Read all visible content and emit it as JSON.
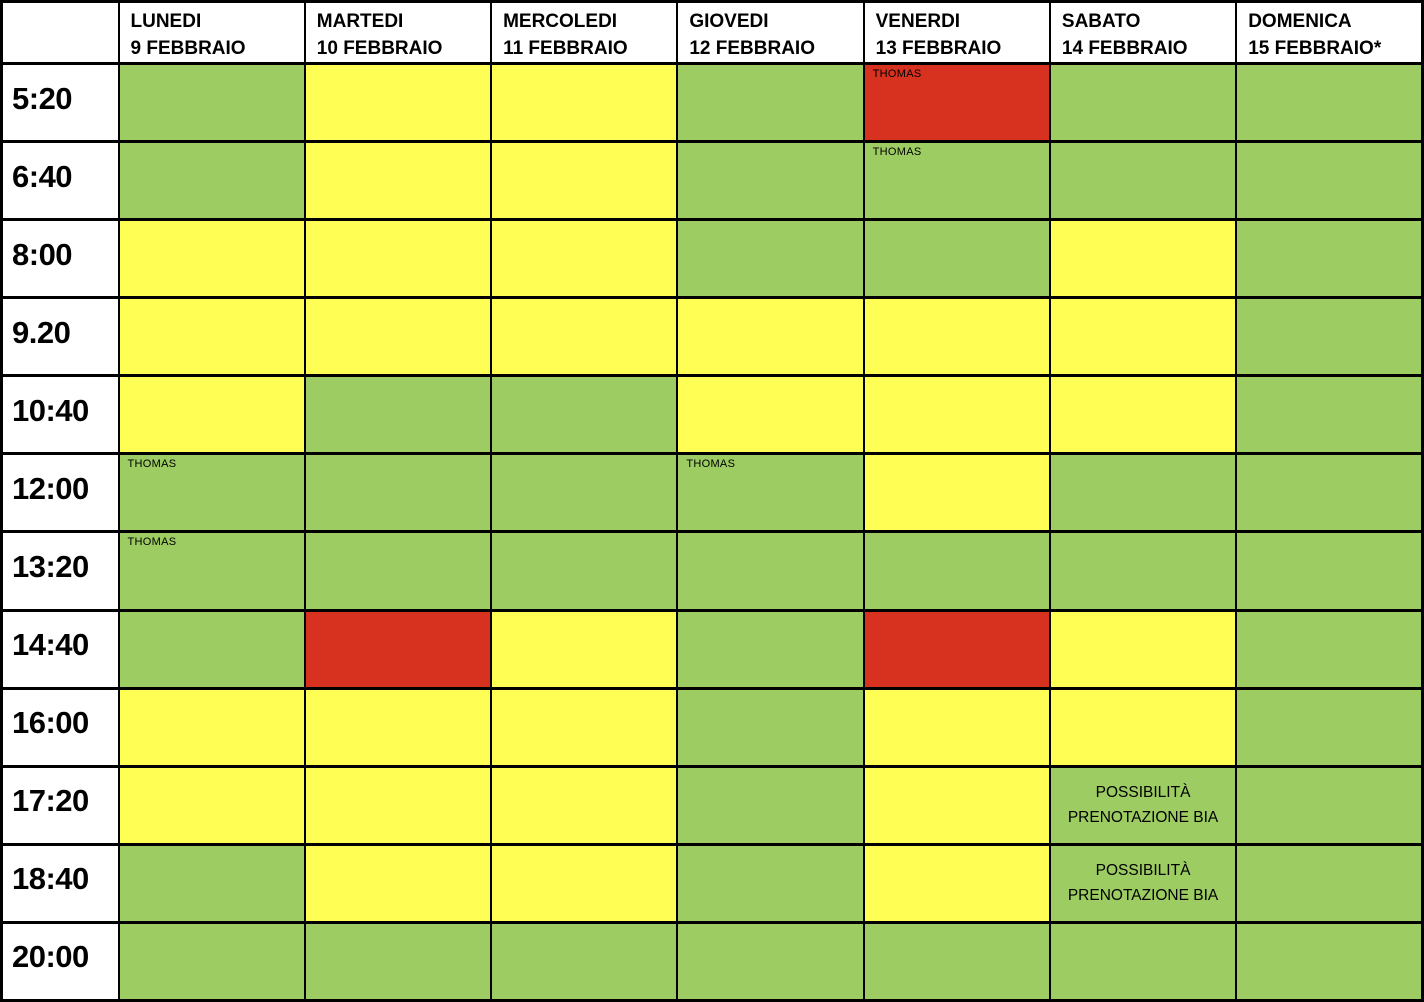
{
  "schedule": {
    "colors": {
      "green": "#9CCC62",
      "yellow": "#FEFE55",
      "red": "#D7311F"
    },
    "columns": [
      {
        "day": "LUNEDI",
        "date": "9 FEBBRAIO"
      },
      {
        "day": "MARTEDI",
        "date": "10 FEBBRAIO"
      },
      {
        "day": "MERCOLEDI",
        "date": "11 FEBBRAIO"
      },
      {
        "day": "GIOVEDI",
        "date": "12 FEBBRAIO"
      },
      {
        "day": "VENERDI",
        "date": "13 FEBBRAIO"
      },
      {
        "day": "SABATO",
        "date": "14 FEBBRAIO"
      },
      {
        "day": "DOMENICA",
        "date": "15 FEBBRAIO*"
      }
    ],
    "rows": [
      {
        "time": "5:20",
        "cells": [
          {
            "state": "green"
          },
          {
            "state": "yellow"
          },
          {
            "state": "yellow"
          },
          {
            "state": "green"
          },
          {
            "state": "red",
            "label": "THOMAS",
            "label_pos": "corner"
          },
          {
            "state": "green"
          },
          {
            "state": "green"
          }
        ]
      },
      {
        "time": "6:40",
        "cells": [
          {
            "state": "green"
          },
          {
            "state": "yellow"
          },
          {
            "state": "yellow"
          },
          {
            "state": "green"
          },
          {
            "state": "green",
            "label": "THOMAS",
            "label_pos": "corner"
          },
          {
            "state": "green"
          },
          {
            "state": "green"
          }
        ]
      },
      {
        "time": "8:00",
        "cells": [
          {
            "state": "yellow"
          },
          {
            "state": "yellow"
          },
          {
            "state": "yellow"
          },
          {
            "state": "green"
          },
          {
            "state": "green"
          },
          {
            "state": "yellow"
          },
          {
            "state": "green"
          }
        ]
      },
      {
        "time": "9.20",
        "cells": [
          {
            "state": "yellow"
          },
          {
            "state": "yellow"
          },
          {
            "state": "yellow"
          },
          {
            "state": "yellow"
          },
          {
            "state": "yellow"
          },
          {
            "state": "yellow"
          },
          {
            "state": "green"
          }
        ]
      },
      {
        "time": "10:40",
        "cells": [
          {
            "state": "yellow"
          },
          {
            "state": "green"
          },
          {
            "state": "green"
          },
          {
            "state": "yellow"
          },
          {
            "state": "yellow"
          },
          {
            "state": "yellow"
          },
          {
            "state": "green"
          }
        ]
      },
      {
        "time": "12:00",
        "cells": [
          {
            "state": "green",
            "label": "THOMAS",
            "label_pos": "corner"
          },
          {
            "state": "green"
          },
          {
            "state": "green"
          },
          {
            "state": "green",
            "label": "THOMAS",
            "label_pos": "corner"
          },
          {
            "state": "yellow"
          },
          {
            "state": "green"
          },
          {
            "state": "green"
          }
        ]
      },
      {
        "time": "13:20",
        "cells": [
          {
            "state": "green",
            "label": "THOMAS",
            "label_pos": "corner"
          },
          {
            "state": "green"
          },
          {
            "state": "green"
          },
          {
            "state": "green"
          },
          {
            "state": "green"
          },
          {
            "state": "green"
          },
          {
            "state": "green"
          }
        ]
      },
      {
        "time": "14:40",
        "cells": [
          {
            "state": "green"
          },
          {
            "state": "red"
          },
          {
            "state": "yellow"
          },
          {
            "state": "green"
          },
          {
            "state": "red"
          },
          {
            "state": "yellow"
          },
          {
            "state": "green"
          }
        ]
      },
      {
        "time": "16:00",
        "cells": [
          {
            "state": "yellow"
          },
          {
            "state": "yellow"
          },
          {
            "state": "yellow"
          },
          {
            "state": "green"
          },
          {
            "state": "yellow"
          },
          {
            "state": "yellow"
          },
          {
            "state": "green"
          }
        ]
      },
      {
        "time": "17:20",
        "cells": [
          {
            "state": "yellow"
          },
          {
            "state": "yellow"
          },
          {
            "state": "yellow"
          },
          {
            "state": "green"
          },
          {
            "state": "yellow"
          },
          {
            "state": "green",
            "label": "POSSIBILITÀ PRENOTAZIONE BIA",
            "label_pos": "center"
          },
          {
            "state": "green"
          }
        ]
      },
      {
        "time": "18:40",
        "cells": [
          {
            "state": "green"
          },
          {
            "state": "yellow"
          },
          {
            "state": "yellow"
          },
          {
            "state": "green"
          },
          {
            "state": "yellow"
          },
          {
            "state": "green",
            "label": "POSSIBILITÀ PRENOTAZIONE BIA",
            "label_pos": "center"
          },
          {
            "state": "green"
          }
        ]
      },
      {
        "time": "20:00",
        "cells": [
          {
            "state": "green"
          },
          {
            "state": "green"
          },
          {
            "state": "green"
          },
          {
            "state": "green"
          },
          {
            "state": "green"
          },
          {
            "state": "green"
          },
          {
            "state": "green"
          }
        ]
      }
    ]
  }
}
